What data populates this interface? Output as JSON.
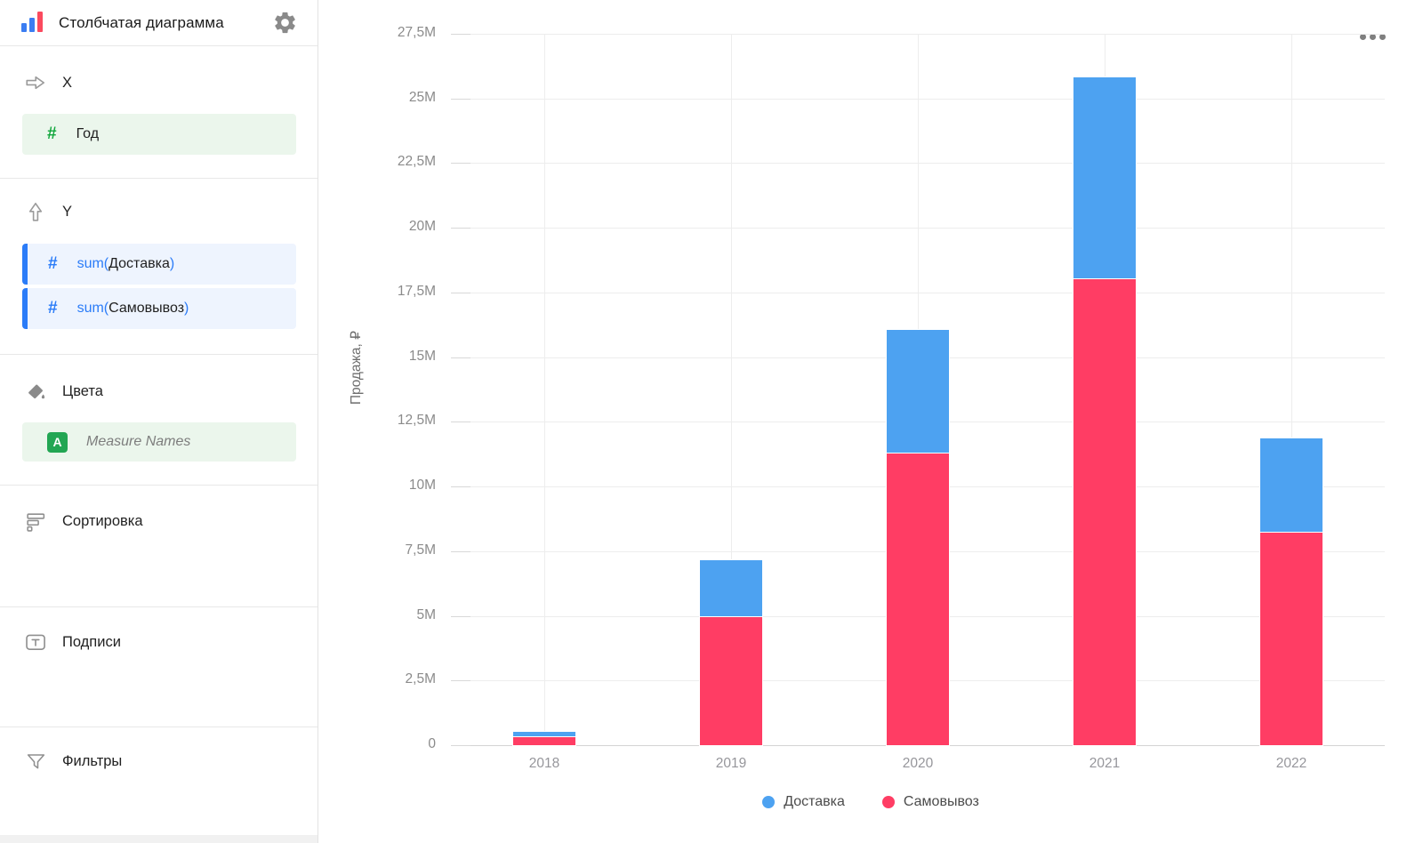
{
  "header": {
    "title": "Столбчатая диаграмма"
  },
  "sidebar": {
    "x": {
      "label": "X",
      "field": "Год"
    },
    "y": {
      "label": "Y",
      "fields": [
        {
          "prefix": "sum(",
          "name": "Доставка",
          "suffix": ")"
        },
        {
          "prefix": "sum(",
          "name": "Самовывоз",
          "suffix": ")"
        }
      ]
    },
    "colors": {
      "label": "Цвета",
      "field": "Measure Names"
    },
    "sort": {
      "label": "Сортировка"
    },
    "labels": {
      "label": "Подписи"
    },
    "filters": {
      "label": "Фильтры"
    }
  },
  "chart_data": {
    "type": "bar",
    "stacked": true,
    "title": "",
    "xlabel": "",
    "ylabel": "Продажа, ₽",
    "unit": "millions of ₽",
    "categories": [
      "2018",
      "2019",
      "2020",
      "2021",
      "2022"
    ],
    "series": [
      {
        "name": "Доставка",
        "color": "#4DA2F1",
        "values": [
          0.19,
          2.18,
          4.74,
          7.77,
          3.6
        ]
      },
      {
        "name": "Самовывоз",
        "color": "#FF3D64",
        "values": [
          0.33,
          4.97,
          11.31,
          18.06,
          8.26
        ]
      }
    ],
    "stack_bottom_series": "Самовывоз",
    "ylim": [
      0,
      27.5
    ],
    "y_ticks": [
      {
        "v": 0,
        "label": "0"
      },
      {
        "v": 2.5,
        "label": "2,5M"
      },
      {
        "v": 5,
        "label": "5M"
      },
      {
        "v": 7.5,
        "label": "7,5M"
      },
      {
        "v": 10,
        "label": "10M"
      },
      {
        "v": 12.5,
        "label": "12,5M"
      },
      {
        "v": 15,
        "label": "15M"
      },
      {
        "v": 17.5,
        "label": "17,5M"
      },
      {
        "v": 20,
        "label": "20M"
      },
      {
        "v": 22.5,
        "label": "22,5M"
      },
      {
        "v": 25,
        "label": "25M"
      },
      {
        "v": 27.5,
        "label": "27,5M"
      }
    ],
    "grid": true,
    "legend_position": "bottom"
  }
}
